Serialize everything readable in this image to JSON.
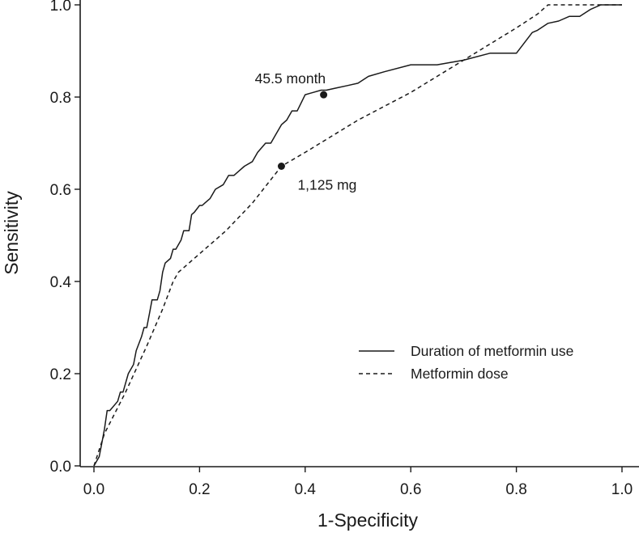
{
  "chart_data": {
    "type": "line",
    "title": "",
    "xlabel": "1-Specificity",
    "ylabel": "Sensitivity",
    "xlim": [
      0,
      1
    ],
    "ylim": [
      0,
      1
    ],
    "xticks": [
      "0.0",
      "0.2",
      "0.4",
      "0.6",
      "0.8",
      "1.0"
    ],
    "yticks": [
      "0.0",
      "0.2",
      "0.4",
      "0.6",
      "0.8",
      "1.0"
    ],
    "grid": false,
    "legend_position": "center-right",
    "series": [
      {
        "name": "Duration of metformin use",
        "style": "solid",
        "x": [
          0.0,
          0.01,
          0.015,
          0.02,
          0.025,
          0.03,
          0.045,
          0.05,
          0.055,
          0.065,
          0.075,
          0.08,
          0.09,
          0.095,
          0.1,
          0.105,
          0.11,
          0.12,
          0.125,
          0.13,
          0.135,
          0.145,
          0.15,
          0.155,
          0.165,
          0.17,
          0.18,
          0.185,
          0.19,
          0.2,
          0.205,
          0.21,
          0.22,
          0.23,
          0.245,
          0.255,
          0.265,
          0.275,
          0.285,
          0.3,
          0.31,
          0.325,
          0.335,
          0.345,
          0.355,
          0.365,
          0.375,
          0.385,
          0.4,
          0.415,
          0.43,
          0.44,
          0.46,
          0.48,
          0.5,
          0.52,
          0.55,
          0.6,
          0.65,
          0.7,
          0.75,
          0.8,
          0.82,
          0.83,
          0.84,
          0.86,
          0.88,
          0.9,
          0.92,
          0.94,
          0.96,
          1.0
        ],
        "y": [
          0.0,
          0.02,
          0.05,
          0.08,
          0.12,
          0.12,
          0.14,
          0.16,
          0.16,
          0.2,
          0.22,
          0.25,
          0.28,
          0.3,
          0.3,
          0.33,
          0.36,
          0.36,
          0.38,
          0.42,
          0.44,
          0.45,
          0.47,
          0.47,
          0.49,
          0.51,
          0.51,
          0.545,
          0.55,
          0.565,
          0.565,
          0.57,
          0.58,
          0.6,
          0.61,
          0.63,
          0.63,
          0.64,
          0.65,
          0.66,
          0.68,
          0.7,
          0.7,
          0.72,
          0.74,
          0.75,
          0.77,
          0.77,
          0.805,
          0.81,
          0.815,
          0.815,
          0.82,
          0.825,
          0.83,
          0.845,
          0.855,
          0.87,
          0.87,
          0.88,
          0.895,
          0.895,
          0.925,
          0.94,
          0.945,
          0.96,
          0.965,
          0.975,
          0.975,
          0.99,
          1.0,
          1.0
        ]
      },
      {
        "name": "Metformin dose",
        "style": "dashed",
        "x": [
          0.0,
          0.02,
          0.06,
          0.1,
          0.13,
          0.15,
          0.16,
          0.2,
          0.25,
          0.3,
          0.355,
          0.4,
          0.5,
          0.6,
          0.7,
          0.8,
          0.84,
          0.86,
          0.9,
          1.0
        ],
        "y": [
          0.0,
          0.07,
          0.16,
          0.26,
          0.34,
          0.4,
          0.42,
          0.46,
          0.51,
          0.57,
          0.65,
          0.68,
          0.75,
          0.81,
          0.88,
          0.95,
          0.98,
          1.0,
          1.0,
          1.0
        ]
      }
    ],
    "points": [
      {
        "series": "Duration of metformin use",
        "x": 0.435,
        "y": 0.805,
        "label": "45.5 month"
      },
      {
        "series": "Metformin dose",
        "x": 0.355,
        "y": 0.65,
        "label": "1,125 mg"
      }
    ]
  }
}
